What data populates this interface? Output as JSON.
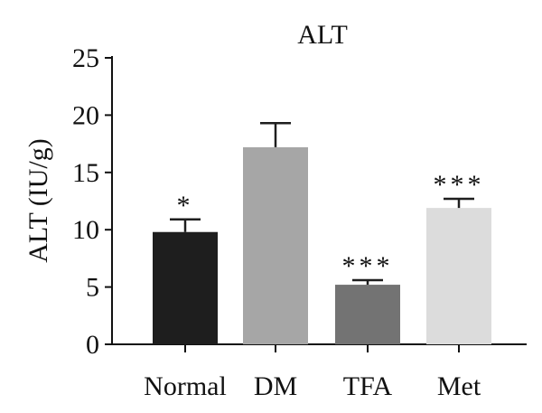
{
  "chart_data": {
    "type": "bar",
    "title": "ALT",
    "xlabel": "",
    "ylabel": "ALT (IU/g)",
    "categories": [
      "Normal",
      "DM",
      "TFA",
      "Met"
    ],
    "values": [
      9.8,
      17.2,
      5.2,
      11.9
    ],
    "errors": [
      1.1,
      2.1,
      0.4,
      0.8
    ],
    "significance": [
      "*",
      "",
      "***",
      "***"
    ],
    "colors": [
      "#1e1e1e",
      "#a6a6a6",
      "#737373",
      "#dcdcdc"
    ],
    "ylim": [
      0,
      25
    ],
    "yticks": [
      0,
      5,
      10,
      15,
      20,
      25
    ],
    "grid": false
  }
}
